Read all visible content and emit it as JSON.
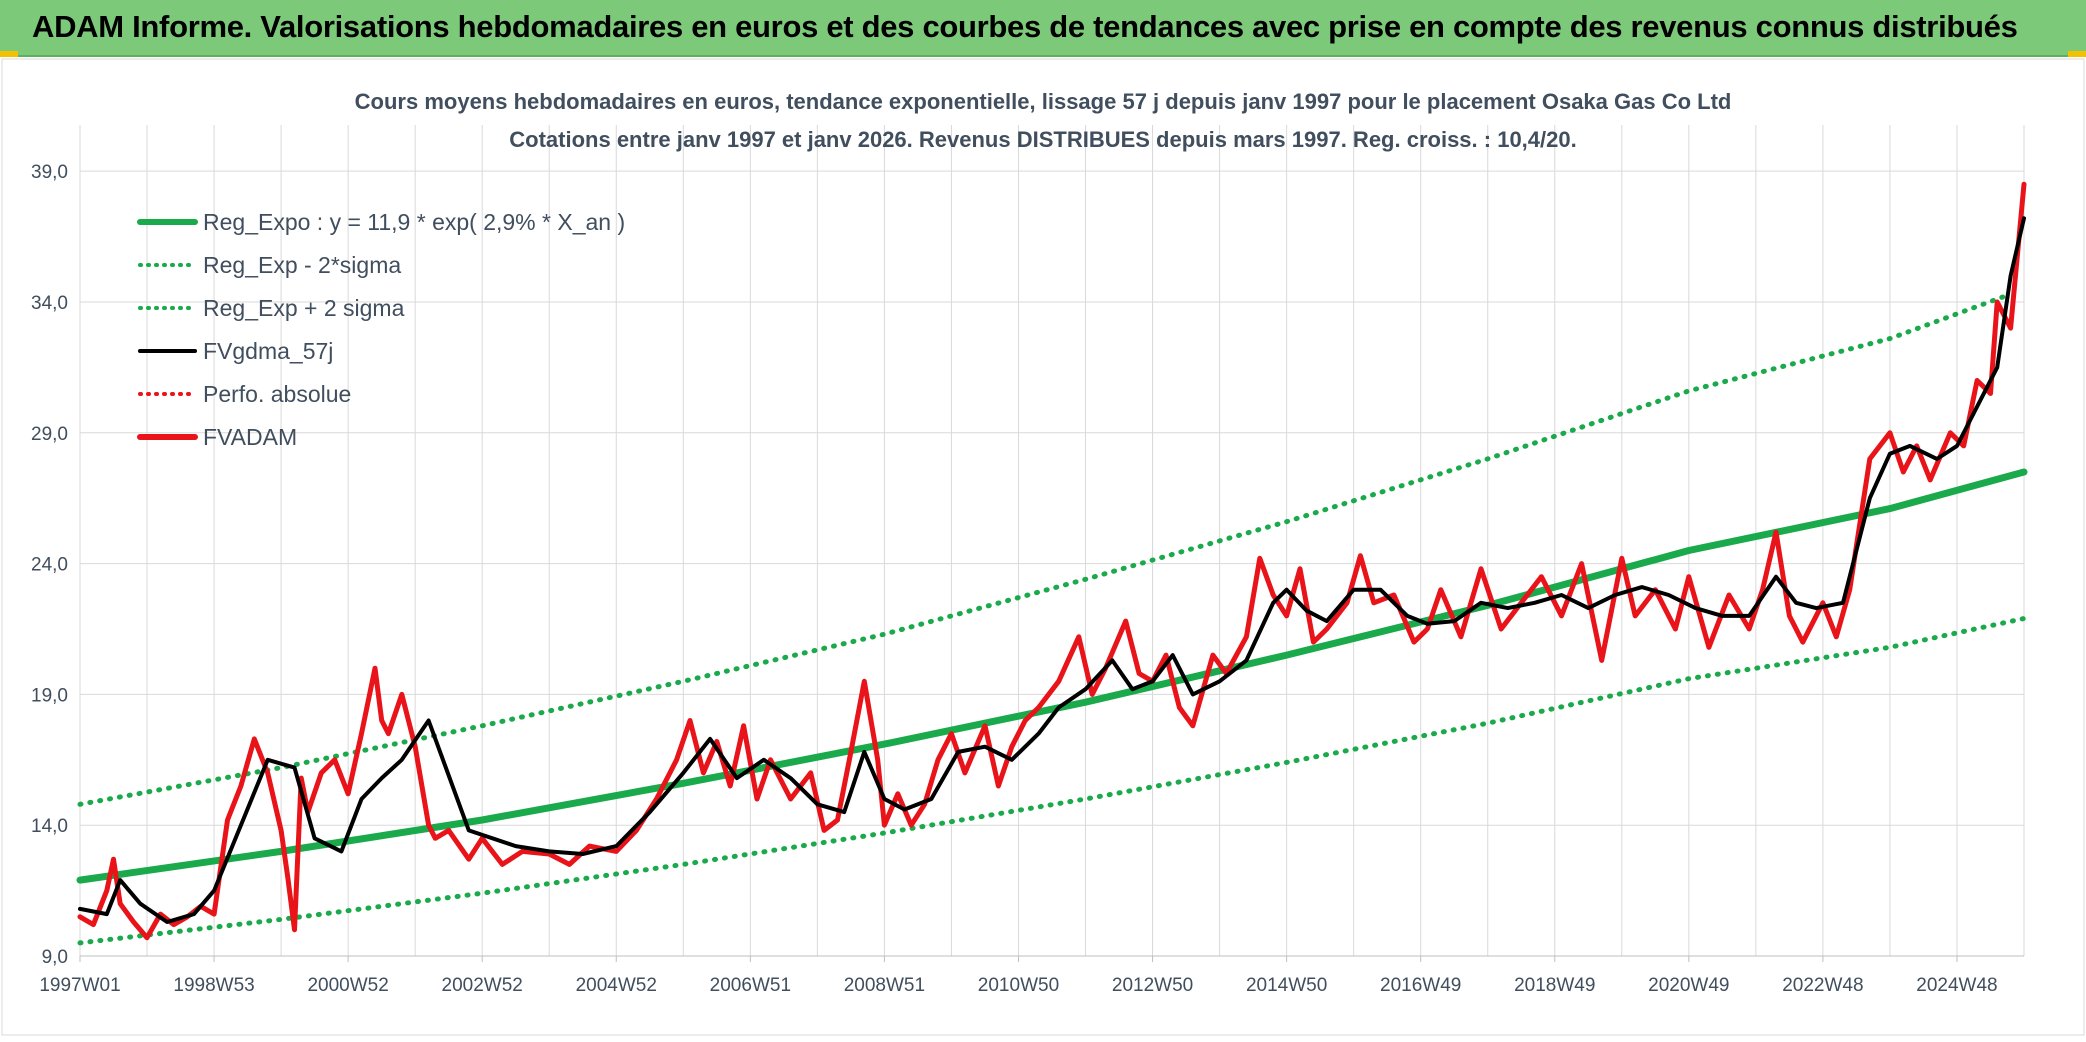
{
  "header": {
    "title": "ADAM Informe. Valorisations hebdomadaires en euros et des courbes de tendances avec prise en compte des revenus connus distribués"
  },
  "colors": {
    "banner": "#7dc97a",
    "reg_expo": "#1aaa4c",
    "fvgdma": "#000000",
    "fvadam": "#e8141a",
    "grid": "#d9d9d9",
    "title_text": "#404e5e"
  },
  "chart_data": {
    "type": "line",
    "title_line1": "Cours moyens hebdomadaires en euros, tendance exponentielle, lissage 57 j depuis janv 1997 pour le placement Osaka Gas Co Ltd",
    "title_line2": "Cotations entre janv 1997 et janv 2026. Revenus DISTRIBUES depuis mars 1997. Reg. croiss. : 10,4/20.",
    "xlabel": "",
    "ylabel": "",
    "ylim": [
      9,
      40
    ],
    "yticks": [
      "9,0",
      "14,0",
      "19,0",
      "24,0",
      "29,0",
      "34,0",
      "39,0"
    ],
    "ytick_values": [
      9,
      14,
      19,
      24,
      29,
      34,
      39
    ],
    "x_range": [
      1997.0,
      2026.0
    ],
    "xticks": [
      "1997W01",
      "1998W53",
      "2000W52",
      "2002W52",
      "2004W52",
      "2006W51",
      "2008W51",
      "2010W50",
      "2012W50",
      "2014W50",
      "2016W49",
      "2018W49",
      "2020W49",
      "2022W48",
      "2024W48"
    ],
    "xtick_values": [
      1997.0,
      1999.0,
      2001.0,
      2003.0,
      2005.0,
      2007.0,
      2009.0,
      2011.0,
      2013.0,
      2015.0,
      2017.0,
      2019.0,
      2021.0,
      2023.0,
      2025.0
    ],
    "legend": {
      "position": "top-left",
      "entries": [
        {
          "label": "Reg_Expo : y = 11,9 * exp( 2,9% *  X_an )",
          "style": "solid-thick",
          "color": "#1aaa4c"
        },
        {
          "label": "Reg_Exp - 2*sigma",
          "style": "dotted",
          "color": "#1aaa4c"
        },
        {
          "label": "Reg_Exp + 2 sigma",
          "style": "dotted",
          "color": "#1aaa4c"
        },
        {
          "label": "FVgdma_57j",
          "style": "solid",
          "color": "#000000"
        },
        {
          "label": "Perfo. absolue",
          "style": "dotted",
          "color": "#e8141a"
        },
        {
          "label": "FVADAM",
          "style": "solid-thick",
          "color": "#e8141a"
        }
      ]
    },
    "series": [
      {
        "name": "Reg_Expo",
        "x": [
          1997.0,
          2000.0,
          2003.0,
          2006.0,
          2009.0,
          2012.0,
          2015.0,
          2018.0,
          2021.0,
          2024.0,
          2026.0
        ],
        "values": [
          11.9,
          13.0,
          14.2,
          15.6,
          17.1,
          18.7,
          20.5,
          22.4,
          24.5,
          26.1,
          27.5
        ]
      },
      {
        "name": "Reg_Exp - 2*sigma",
        "x": [
          1997.0,
          2000.0,
          2003.0,
          2006.0,
          2009.0,
          2012.0,
          2015.0,
          2018.0,
          2021.0,
          2024.0,
          2026.0
        ],
        "values": [
          9.5,
          10.4,
          11.4,
          12.5,
          13.7,
          15.0,
          16.4,
          17.9,
          19.6,
          20.8,
          21.9
        ]
      },
      {
        "name": "Reg_Exp + 2 sigma",
        "x": [
          1997.0,
          2000.0,
          2003.0,
          2006.0,
          2009.0,
          2012.0,
          2015.0,
          2018.0,
          2021.0,
          2024.0,
          2025.8
        ],
        "values": [
          14.8,
          16.2,
          17.8,
          19.5,
          21.3,
          23.4,
          25.6,
          28.0,
          30.6,
          32.6,
          34.3
        ]
      },
      {
        "name": "FVgdma_57j",
        "x": [
          1997.0,
          1997.4,
          1997.6,
          1997.9,
          1998.3,
          1998.7,
          1999.0,
          1999.4,
          1999.8,
          2000.2,
          2000.5,
          2000.9,
          2001.2,
          2001.5,
          2001.8,
          2002.2,
          2002.8,
          2003.5,
          2004.0,
          2004.5,
          2005.0,
          2005.5,
          2006.0,
          2006.4,
          2006.8,
          2007.2,
          2007.6,
          2008.0,
          2008.4,
          2008.7,
          2009.0,
          2009.3,
          2009.7,
          2010.1,
          2010.5,
          2010.9,
          2011.3,
          2011.6,
          2012.0,
          2012.4,
          2012.7,
          2013.0,
          2013.3,
          2013.6,
          2014.0,
          2014.4,
          2014.8,
          2015.0,
          2015.3,
          2015.6,
          2016.0,
          2016.4,
          2016.8,
          2017.1,
          2017.5,
          2017.9,
          2018.3,
          2018.7,
          2019.1,
          2019.5,
          2019.9,
          2020.3,
          2020.7,
          2021.1,
          2021.5,
          2021.9,
          2022.3,
          2022.6,
          2022.9,
          2023.3,
          2023.7,
          2024.0,
          2024.3,
          2024.7,
          2025.0,
          2025.3,
          2025.6,
          2025.8,
          2026.0
        ],
        "values": [
          10.8,
          10.6,
          11.9,
          11.0,
          10.3,
          10.6,
          11.5,
          14.0,
          16.5,
          16.2,
          13.5,
          13.0,
          15.0,
          15.8,
          16.5,
          18.0,
          13.8,
          13.2,
          13.0,
          12.9,
          13.2,
          14.5,
          16.0,
          17.3,
          15.8,
          16.5,
          15.8,
          14.8,
          14.5,
          16.8,
          15.0,
          14.6,
          15.0,
          16.8,
          17.0,
          16.5,
          17.5,
          18.5,
          19.2,
          20.3,
          19.2,
          19.5,
          20.5,
          19.0,
          19.5,
          20.3,
          22.5,
          23.0,
          22.2,
          21.8,
          23.0,
          23.0,
          22.0,
          21.7,
          21.8,
          22.5,
          22.3,
          22.5,
          22.8,
          22.3,
          22.8,
          23.1,
          22.8,
          22.3,
          22.0,
          22.0,
          23.5,
          22.5,
          22.3,
          22.5,
          26.5,
          28.2,
          28.5,
          28.0,
          28.5,
          30.0,
          31.5,
          35.0,
          37.2
        ]
      },
      {
        "name": "FVADAM",
        "x": [
          1997.0,
          1997.2,
          1997.4,
          1997.5,
          1997.6,
          1997.8,
          1998.0,
          1998.2,
          1998.4,
          1998.6,
          1998.8,
          1999.0,
          1999.2,
          1999.4,
          1999.6,
          1999.8,
          2000.0,
          2000.1,
          2000.2,
          2000.3,
          2000.4,
          2000.6,
          2000.8,
          2001.0,
          2001.2,
          2001.4,
          2001.5,
          2001.6,
          2001.8,
          2002.0,
          2002.2,
          2002.3,
          2002.5,
          2002.8,
          2003.0,
          2003.3,
          2003.6,
          2004.0,
          2004.3,
          2004.6,
          2005.0,
          2005.3,
          2005.6,
          2005.9,
          2006.1,
          2006.3,
          2006.5,
          2006.7,
          2006.9,
          2007.1,
          2007.3,
          2007.6,
          2007.9,
          2008.1,
          2008.3,
          2008.5,
          2008.7,
          2008.9,
          2009.0,
          2009.2,
          2009.4,
          2009.6,
          2009.8,
          2010.0,
          2010.2,
          2010.5,
          2010.7,
          2010.9,
          2011.1,
          2011.3,
          2011.6,
          2011.9,
          2012.1,
          2012.3,
          2012.6,
          2012.8,
          2013.0,
          2013.2,
          2013.4,
          2013.6,
          2013.9,
          2014.1,
          2014.4,
          2014.6,
          2014.8,
          2015.0,
          2015.2,
          2015.4,
          2015.6,
          2015.9,
          2016.1,
          2016.3,
          2016.6,
          2016.9,
          2017.1,
          2017.3,
          2017.6,
          2017.9,
          2018.2,
          2018.5,
          2018.8,
          2019.1,
          2019.4,
          2019.7,
          2020.0,
          2020.2,
          2020.5,
          2020.8,
          2021.0,
          2021.3,
          2021.6,
          2021.9,
          2022.1,
          2022.3,
          2022.5,
          2022.7,
          2023.0,
          2023.2,
          2023.4,
          2023.7,
          2024.0,
          2024.2,
          2024.4,
          2024.6,
          2024.9,
          2025.1,
          2025.3,
          2025.5,
          2025.6,
          2025.8,
          2026.0
        ],
        "values": [
          10.5,
          10.2,
          11.5,
          12.7,
          11.0,
          10.3,
          9.7,
          10.6,
          10.2,
          10.5,
          10.9,
          10.6,
          14.2,
          15.5,
          17.3,
          16.0,
          13.8,
          12.0,
          10.0,
          15.8,
          14.5,
          16.0,
          16.5,
          15.2,
          17.5,
          20.0,
          18.0,
          17.5,
          19.0,
          17.0,
          14.0,
          13.5,
          13.8,
          12.7,
          13.5,
          12.5,
          13.0,
          12.9,
          12.5,
          13.2,
          13.0,
          13.8,
          15.0,
          16.5,
          18.0,
          16.0,
          17.2,
          15.5,
          17.8,
          15.0,
          16.5,
          15.0,
          16.0,
          13.8,
          14.2,
          16.8,
          19.5,
          16.5,
          14.0,
          15.2,
          14.0,
          14.8,
          16.5,
          17.5,
          16.0,
          17.8,
          15.5,
          17.0,
          18.0,
          18.5,
          19.5,
          21.2,
          19.0,
          20.0,
          21.8,
          19.8,
          19.5,
          20.5,
          18.5,
          17.8,
          20.5,
          19.8,
          21.2,
          24.2,
          22.8,
          22.0,
          23.8,
          21.0,
          21.5,
          22.5,
          24.3,
          22.5,
          22.8,
          21.0,
          21.5,
          23.0,
          21.2,
          23.8,
          21.5,
          22.5,
          23.5,
          22.0,
          24.0,
          20.3,
          24.2,
          22.0,
          23.0,
          21.5,
          23.5,
          20.8,
          22.8,
          21.5,
          23.0,
          25.2,
          22.0,
          21.0,
          22.5,
          21.2,
          23.0,
          28.0,
          29.0,
          27.5,
          28.5,
          27.2,
          29.0,
          28.5,
          31.0,
          30.5,
          34.0,
          33.0,
          38.5
        ]
      }
    ]
  }
}
